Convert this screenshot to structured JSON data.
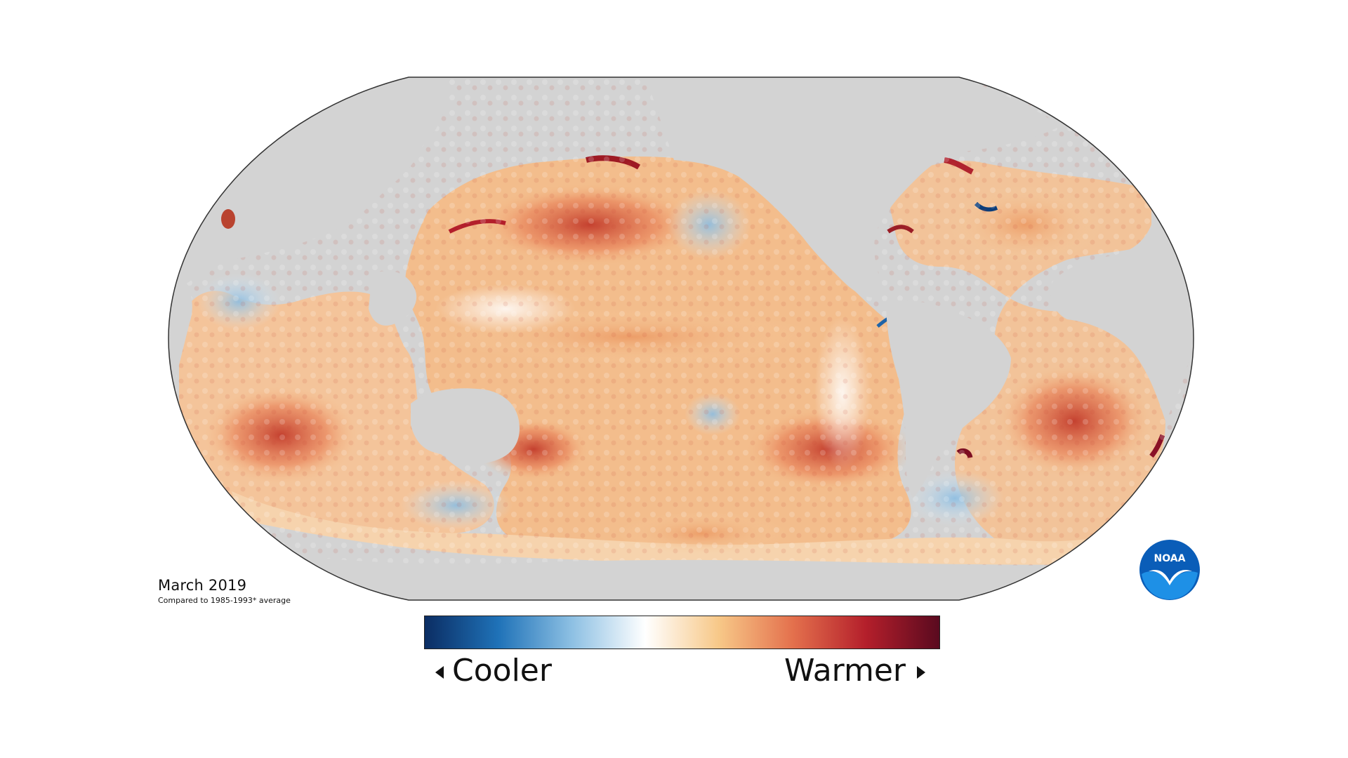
{
  "map": {
    "projection": "Robinson-style world ocean map",
    "land_color": "#d3d3d3",
    "outline_color": "#333333"
  },
  "caption": {
    "date": "March 2019",
    "comparison": "Compared to 1985-1993* average"
  },
  "legend": {
    "cooler_label": "Cooler",
    "warmer_label": "Warmer",
    "left_arrow_icon": "triangle-left-icon",
    "right_arrow_icon": "triangle-right-icon",
    "colors": [
      "#0b2d63",
      "#1f72b8",
      "#8dc0e3",
      "#ffffff",
      "#f7c888",
      "#e4714d",
      "#b41f2b",
      "#5a0a1f"
    ]
  },
  "logo": {
    "text": "NOAA",
    "icon": "noaa-logo-icon",
    "primary_color": "#0a5db8",
    "accent_color": "#1e90e6"
  }
}
